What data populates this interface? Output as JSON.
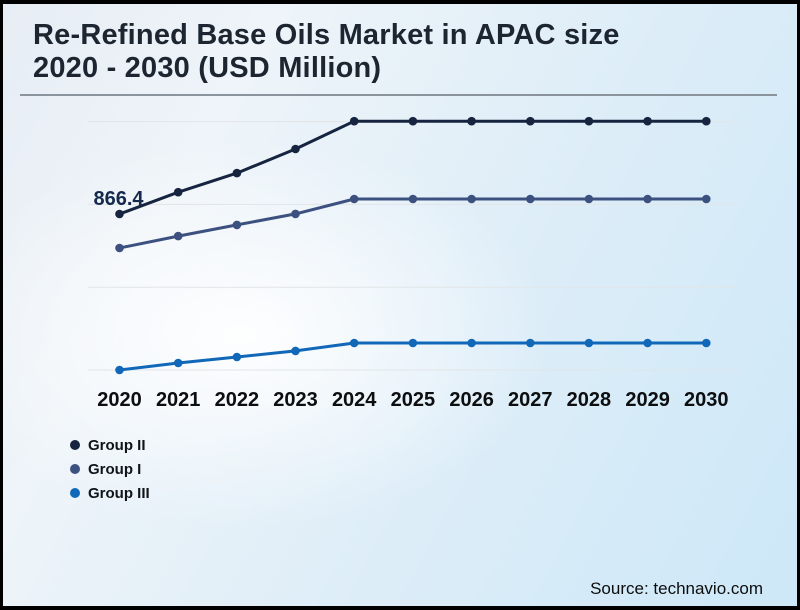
{
  "header": {
    "title_lines": [
      "Re-Refined Base Oils Market in APAC size",
      "2020 - 2030 (USD Million)"
    ]
  },
  "footer": {
    "source": "Source: technavio.com"
  },
  "colors": {
    "title": "#1c2530",
    "rule": "#8b949c",
    "grid": "#e2e5e7",
    "axis_label": "#0c0e10",
    "annotation": "#15294d",
    "frame_border": "#000000",
    "background_corner_blue": "#cde8f8"
  },
  "chart_data": {
    "type": "line",
    "title": "Re-Refined Base Oils Market in APAC size 2020 - 2030 (USD Million)",
    "unit": "USD Million",
    "x": [
      "2020",
      "2021",
      "2022",
      "2023",
      "2024",
      "2025",
      "2026",
      "2027",
      "2028",
      "2029",
      "2030"
    ],
    "series": [
      {
        "name": "Group II",
        "color": "#16243f",
        "values": [
          866.4,
          988,
          1094,
          1228,
          1382,
          1382,
          1382,
          1382,
          1382,
          1382,
          1382
        ]
      },
      {
        "name": "Group I",
        "color": "#3c517f",
        "values": [
          678,
          744,
          806,
          867,
          950,
          950,
          950,
          950,
          950,
          950,
          950
        ]
      },
      {
        "name": "Group III",
        "color": "#1268b8",
        "values": [
          0,
          39,
          72,
          106,
          150,
          150,
          150,
          150,
          150,
          150,
          150
        ]
      }
    ],
    "gridlines": [
      0,
      460,
      920,
      1380
    ],
    "ylim": [
      0,
      1445
    ],
    "grid": "horizontal-only",
    "legend_position": "bottom-left",
    "point_label": {
      "series": "Group II",
      "x": "2020",
      "text": "866.4"
    }
  }
}
